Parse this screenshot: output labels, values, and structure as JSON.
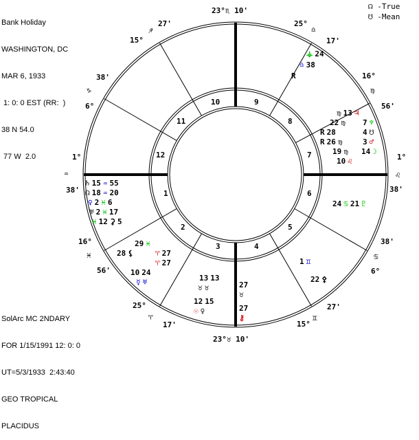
{
  "header": {
    "lines": [
      "Bank Holiday",
      "WASHINGTON, DC",
      "MAR 6, 1933",
      " 1: 0: 0 EST (RR:  )",
      "38 N 54.0",
      " 77 W  2.0"
    ]
  },
  "footer": {
    "lines": [
      "SolArc MC 2NDARY",
      "FOR 1/15/1991 12: 0: 0",
      "UT=5/3/1933  2:43:40",
      "GEO TROPICAL",
      "PLACIDUS"
    ]
  },
  "legend": {
    "true_node": "☊ -True",
    "mean_node": "☋ -Mean"
  },
  "colors": {
    "black": "#000000",
    "red": "#d40000",
    "green": "#00c000",
    "blue": "#0000d0"
  },
  "cusp_labels": [
    "23°♏ 10'",
    "27'",
    "♐",
    "15°",
    "38'",
    "♑",
    "6°",
    "1°",
    "♒",
    "38'",
    "16°",
    "♓",
    "56'",
    "25°",
    "♈",
    "17'",
    "23°♉ 10'",
    "15°",
    "♊",
    "27'",
    "6°",
    "♋",
    "38'",
    "38'",
    "♌",
    "1°",
    "56'",
    "♍",
    "16°",
    "17'",
    "♎",
    "25°"
  ],
  "house_numbers": [
    "10",
    "9",
    "11",
    "12",
    "1",
    "2",
    "3",
    "4",
    "5",
    "6",
    "7",
    "8"
  ],
  "planets": [
    {
      "text": "⚶",
      "color": "green"
    },
    {
      "text": "24",
      "color": "black"
    },
    {
      "text": "♎",
      "color": "blue"
    },
    {
      "text": "38",
      "color": "black"
    },
    {
      "text": "R",
      "color": "black"
    },
    {
      "text": "13",
      "color": "black"
    },
    {
      "text": "♃",
      "color": "red"
    },
    {
      "text": "7",
      "color": "black"
    },
    {
      "text": "♆",
      "color": "green"
    },
    {
      "text": "♍",
      "color": "black"
    },
    {
      "text": "22",
      "color": "black"
    },
    {
      "text": "♍",
      "color": "black"
    },
    {
      "text": "R",
      "color": "black"
    },
    {
      "text": "28",
      "color": "black"
    },
    {
      "text": "R",
      "color": "black"
    },
    {
      "text": "26",
      "color": "black"
    },
    {
      "text": "♍",
      "color": "black"
    },
    {
      "text": "19",
      "color": "black"
    },
    {
      "text": "♍",
      "color": "black"
    },
    {
      "text": "10",
      "color": "black"
    },
    {
      "text": "♌",
      "color": "red"
    },
    {
      "text": "4",
      "color": "black"
    },
    {
      "text": "☋",
      "color": "black"
    },
    {
      "text": "3",
      "color": "black"
    },
    {
      "text": "♂",
      "color": "red"
    },
    {
      "text": "14",
      "color": "black"
    },
    {
      "text": "☽",
      "color": "green"
    },
    {
      "text": "24",
      "color": "black"
    },
    {
      "text": "♋",
      "color": "green"
    },
    {
      "text": "21",
      "color": "black"
    },
    {
      "text": "♇",
      "color": "green"
    },
    {
      "text": "1",
      "color": "black"
    },
    {
      "text": "♊",
      "color": "blue"
    },
    {
      "text": "22",
      "color": "black"
    },
    {
      "text": "⚴",
      "color": "black"
    },
    {
      "text": "♄",
      "color": "black"
    },
    {
      "text": "15",
      "color": "black"
    },
    {
      "text": "♒",
      "color": "blue"
    },
    {
      "text": "55",
      "color": "black"
    },
    {
      "text": "☊",
      "color": "black"
    },
    {
      "text": "18",
      "color": "black"
    },
    {
      "text": "♒",
      "color": "blue"
    },
    {
      "text": "20",
      "color": "black"
    },
    {
      "text": "♀",
      "color": "blue"
    },
    {
      "text": "2",
      "color": "black"
    },
    {
      "text": "♓",
      "color": "green"
    },
    {
      "text": "6",
      "color": "black"
    },
    {
      "text": "♅",
      "color": "black"
    },
    {
      "text": "2",
      "color": "black"
    },
    {
      "text": "♓",
      "color": "green"
    },
    {
      "text": "17",
      "color": "black"
    },
    {
      "text": "♓",
      "color": "green"
    },
    {
      "text": "12",
      "color": "black"
    },
    {
      "text": "⚳",
      "color": "black"
    },
    {
      "text": "5",
      "color": "black"
    },
    {
      "text": "29",
      "color": "black"
    },
    {
      "text": "♓",
      "color": "green"
    },
    {
      "text": "28",
      "color": "black"
    },
    {
      "text": "⚸",
      "color": "black"
    },
    {
      "text": "27",
      "color": "black"
    },
    {
      "text": "27",
      "color": "black"
    },
    {
      "text": "♈",
      "color": "red"
    },
    {
      "text": "♈",
      "color": "red"
    },
    {
      "text": "10",
      "color": "black"
    },
    {
      "text": "24",
      "color": "black"
    },
    {
      "text": "☿",
      "color": "blue"
    },
    {
      "text": "♅",
      "color": "blue"
    },
    {
      "text": "13",
      "color": "black"
    },
    {
      "text": "13",
      "color": "black"
    },
    {
      "text": "♉",
      "color": "black"
    },
    {
      "text": "♉",
      "color": "black"
    },
    {
      "text": "12",
      "color": "black"
    },
    {
      "text": "15",
      "color": "black"
    },
    {
      "text": "☉",
      "color": "red"
    },
    {
      "text": "♀",
      "color": "black"
    },
    {
      "text": "27",
      "color": "black"
    },
    {
      "text": "♉",
      "color": "black"
    },
    {
      "text": "27",
      "color": "black"
    },
    {
      "text": "⚷",
      "color": "red"
    }
  ]
}
